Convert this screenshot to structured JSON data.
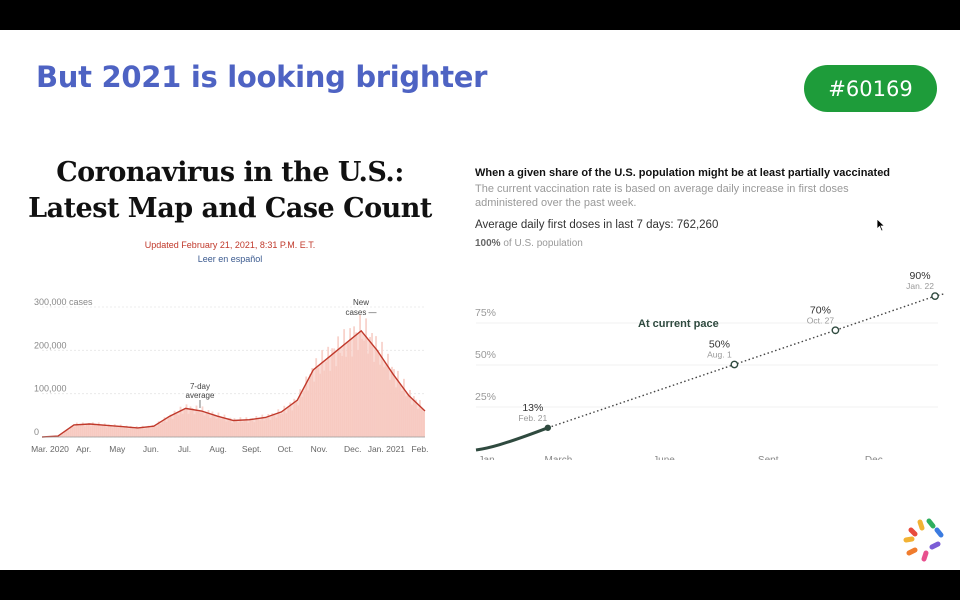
{
  "slide": {
    "title": "But 2021 is looking brighter",
    "badge": "#60169"
  },
  "nyt": {
    "headline_line1": "Coronavirus in the U.S.:",
    "headline_line2": "Latest Map and Case Count",
    "updated": "Updated February 21, 2021, 8:31 P.M. E.T.",
    "spanish_link": "Leer en español"
  },
  "icons": [
    "arrow-cursor-icon",
    "logo-icon"
  ],
  "colors": {
    "title_blue": "#4e63c3",
    "badge_green": "#1e9c3a",
    "cases_fill": "#f6c4bc",
    "cases_line": "#c0392b",
    "vacc_line": "#2f4a3f"
  },
  "chart_data": [
    {
      "type": "area",
      "title": "",
      "y_axis_labels": [
        "300,000 cases",
        "200,000",
        "100,000",
        "0"
      ],
      "ylim": [
        0,
        300000
      ],
      "categories": [
        "Mar. 2020",
        "Apr.",
        "May",
        "Jun.",
        "Jul.",
        "Aug.",
        "Sept.",
        "Oct.",
        "Nov.",
        "Dec.",
        "Jan. 2021",
        "Feb."
      ],
      "annotations": [
        {
          "label_line1": "7-day",
          "label_line2": "average",
          "x": "Jul."
        },
        {
          "label_line1": "New",
          "label_line2": "cases —",
          "x": "Jan. 2021"
        }
      ],
      "x": [
        "Mar. 2020",
        "Mar. 15",
        "Apr.",
        "Apr. 15",
        "May",
        "May 15",
        "Jun.",
        "Jun. 15",
        "Jul.",
        "Jul. 15",
        "Aug.",
        "Aug. 15",
        "Sept.",
        "Sept. 15",
        "Oct.",
        "Oct. 15",
        "Nov.",
        "Nov. 15",
        "Dec.",
        "Dec. 15",
        "Jan. 2021",
        "Jan. 15",
        "Feb.",
        "Feb. 15",
        "Feb. 21"
      ],
      "series": [
        {
          "values": [
            0,
            2000,
            28000,
            30000,
            27000,
            24000,
            21000,
            25000,
            48000,
            66000,
            60000,
            48000,
            38000,
            40000,
            45000,
            58000,
            85000,
            155000,
            185000,
            215000,
            245000,
            200000,
            145000,
            95000,
            60000
          ]
        }
      ]
    },
    {
      "type": "line",
      "title": "When a given share of the U.S. population might be at least partially vaccinated",
      "subtitle_line1": "The current vaccination rate is based on average daily increase in first doses",
      "subtitle_line2": "administered over the past week.",
      "stat": "Average daily first doses in last 7 days: 762,260",
      "ylabel_top_bold": "100%",
      "ylabel_top_rest": " of U.S. population",
      "y_ticks": [
        "75%",
        "50%",
        "25%"
      ],
      "ylim": [
        0,
        100
      ],
      "categories": [
        "Jan.",
        "March",
        "June",
        "Sept.",
        "Dec."
      ],
      "pace_label": "At current pace",
      "series": [
        {
          "x": [
            "Jan.",
            "Feb. 21"
          ],
          "values": [
            0,
            13
          ]
        },
        {
          "x": [
            "Feb. 21",
            "Aug. 1",
            "Oct. 27",
            "Jan. 22"
          ],
          "values": [
            13,
            50,
            70,
            90
          ]
        }
      ],
      "milestones": [
        {
          "pct": "13%",
          "date": "Feb. 21",
          "value": 13
        },
        {
          "pct": "50%",
          "date": "Aug. 1",
          "value": 50
        },
        {
          "pct": "70%",
          "date": "Oct. 27",
          "value": 70
        },
        {
          "pct": "90%",
          "date": "Jan. 22",
          "value": 90
        }
      ]
    }
  ]
}
